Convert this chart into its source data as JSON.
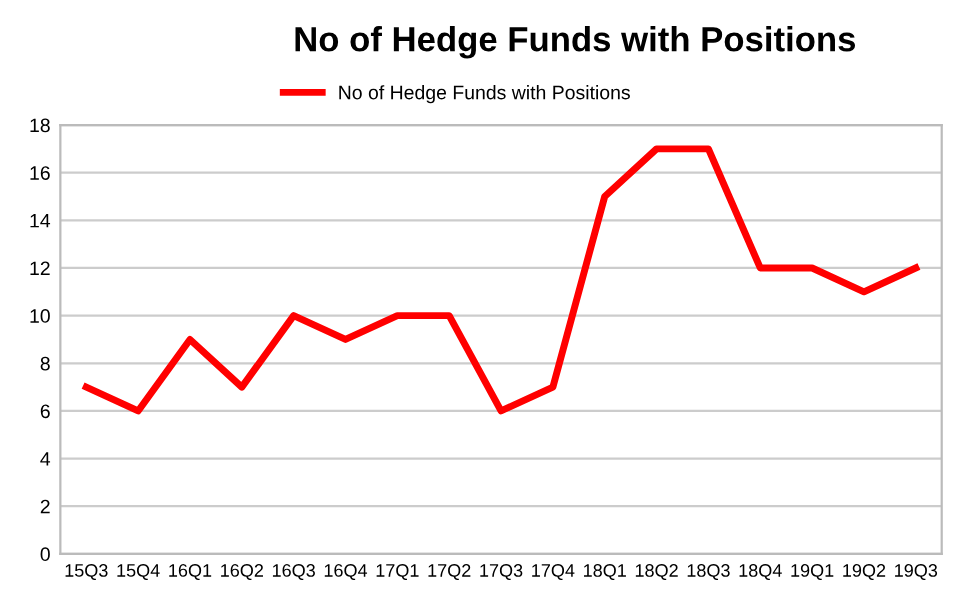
{
  "chart_data": {
    "type": "line",
    "title": "No of Hedge Funds with Positions",
    "categories": [
      "15Q3",
      "15Q4",
      "16Q1",
      "16Q2",
      "16Q3",
      "16Q4",
      "17Q1",
      "17Q2",
      "17Q3",
      "17Q4",
      "18Q1",
      "18Q2",
      "18Q3",
      "18Q4",
      "19Q1",
      "19Q2",
      "19Q3"
    ],
    "series": [
      {
        "name": "No of Hedge Funds with Positions",
        "color": "#ff0000",
        "values": [
          7,
          6,
          9,
          7,
          10,
          9,
          10,
          10,
          6,
          7,
          15,
          17,
          17,
          12,
          12,
          11,
          12
        ]
      }
    ],
    "ylim": [
      0,
      18
    ],
    "yticks": [
      0,
      2,
      4,
      6,
      8,
      10,
      12,
      14,
      16,
      18
    ],
    "grid": "y",
    "legend": "top",
    "marker": "none",
    "line_style": "solid"
  }
}
